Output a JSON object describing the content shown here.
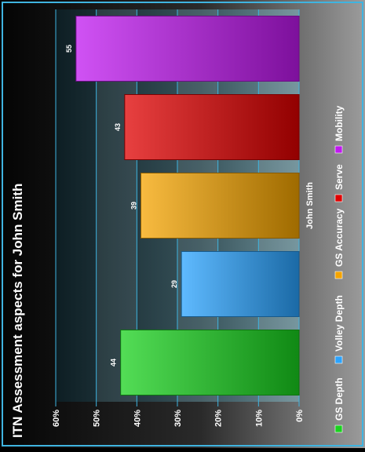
{
  "chart_data": {
    "type": "bar",
    "orientation": "horizontal",
    "title": "ITN Assessment aspects for John Smith",
    "category_label": "John Smith",
    "categories": [
      "GS Depth",
      "Volley Depth",
      "GS Accuracy",
      "Serve",
      "Mobility"
    ],
    "values": [
      44,
      29,
      39,
      43,
      55
    ],
    "value_labels": [
      "44",
      "29",
      "39",
      "43",
      "55"
    ],
    "colors": [
      "#19d21e",
      "#2aa3ff",
      "#f5a400",
      "#e00000",
      "#c018f0"
    ],
    "axis": {
      "min": 0,
      "max": 60,
      "ticks": [
        "0%",
        "10%",
        "20%",
        "30%",
        "40%",
        "50%",
        "60%"
      ]
    },
    "grid": true,
    "legend_position": "bottom"
  }
}
